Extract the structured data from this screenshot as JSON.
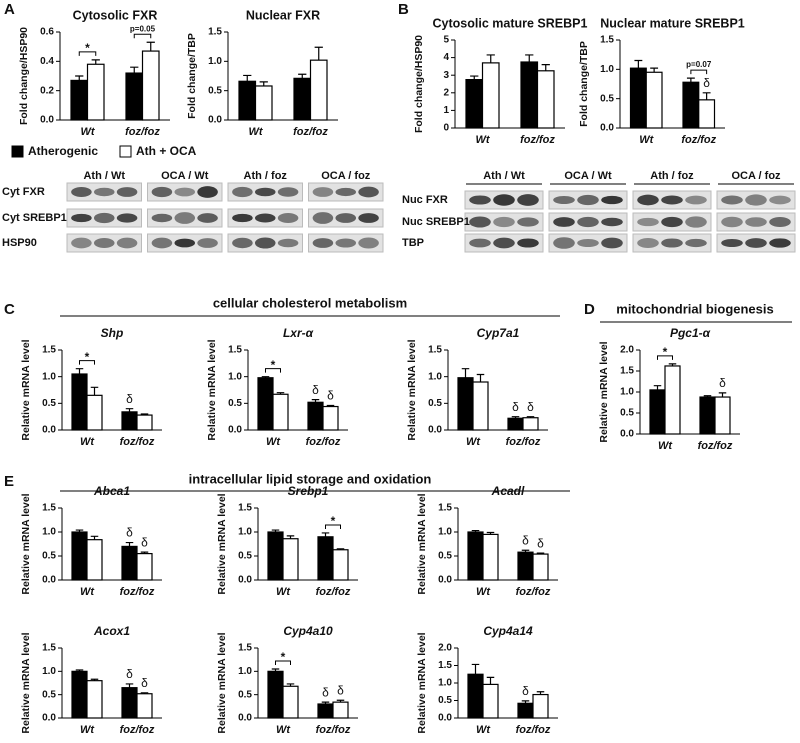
{
  "panels": [
    "A",
    "B",
    "C",
    "D",
    "E"
  ],
  "sections": [
    "cellular cholesterol metabolism",
    "mitochondrial biogenesis",
    "intracellular lipid storage and oxidation"
  ],
  "legend": [
    {
      "name": "Atherogenic",
      "color": "#000000"
    },
    {
      "name": "Ath + OCA",
      "color": "#ffffff"
    }
  ],
  "blots": [
    {
      "columns": [
        "Ath / Wt",
        "OCA / Wt",
        "Ath / foz",
        "OCA / foz"
      ],
      "rows": [
        "Cyt FXR",
        "Cyt SREBP1",
        "HSP90"
      ]
    },
    {
      "columns": [
        "Ath / Wt",
        "OCA / Wt",
        "Ath / foz",
        "OCA / foz"
      ],
      "rows": [
        "Nuc FXR",
        "Nuc SREBP1",
        "TBP"
      ]
    }
  ],
  "chart_data": [
    {
      "type": "bar",
      "title": "Cytosolic FXR",
      "ylabel": "Fold change/HSP90",
      "categories": [
        "Wt",
        "foz/foz"
      ],
      "series": [
        {
          "color": "#000000",
          "values": [
            0.27,
            0.32
          ],
          "errors": [
            0.03,
            0.04
          ]
        },
        {
          "color": "#ffffff",
          "values": [
            0.38,
            0.47
          ],
          "errors": [
            0.03,
            0.06
          ]
        }
      ],
      "ylim": [
        0,
        0.6
      ],
      "yticks": [
        {
          "value": 0,
          "label": "0.0"
        },
        0.2,
        0.4,
        0.6
      ],
      "annotations": [
        {
          "text": "*",
          "category": 0
        },
        {
          "text": "p=0.05",
          "category": 1
        }
      ]
    },
    {
      "type": "bar",
      "title": "Nuclear FXR",
      "ylabel": "Fold change/TBP",
      "categories": [
        "Wt",
        "foz/foz"
      ],
      "series": [
        {
          "color": "#000000",
          "values": [
            0.66,
            0.71
          ],
          "errors": [
            0.1,
            0.07
          ]
        },
        {
          "color": "#ffffff",
          "values": [
            0.58,
            1.02
          ],
          "errors": [
            0.07,
            0.22
          ]
        }
      ],
      "ylim": [
        0,
        1.5
      ],
      "yticks": [
        {
          "value": 0,
          "label": "0.0"
        },
        0.5,
        {
          "value": 1,
          "label": "1.0"
        },
        1.5
      ],
      "annotations": []
    },
    {
      "type": "bar",
      "title": "Cytosolic mature SREBP1",
      "ylabel": "Fold change/HSP90",
      "categories": [
        "Wt",
        "foz/foz"
      ],
      "series": [
        {
          "color": "#000000",
          "values": [
            2.75,
            3.75
          ],
          "errors": [
            0.2,
            0.4
          ]
        },
        {
          "color": "#ffffff",
          "values": [
            3.7,
            3.25
          ],
          "errors": [
            0.45,
            0.35
          ]
        }
      ],
      "ylim": [
        0,
        5
      ],
      "yticks": [
        0,
        1,
        2,
        3,
        4,
        5
      ],
      "annotations": []
    },
    {
      "type": "bar",
      "title": "Nuclear mature SREBP1",
      "ylabel": "Fold change/TBP",
      "categories": [
        "Wt",
        "foz/foz"
      ],
      "series": [
        {
          "color": "#000000",
          "values": [
            1.02,
            0.78
          ],
          "errors": [
            0.13,
            0.07
          ]
        },
        {
          "color": "#ffffff",
          "values": [
            0.95,
            0.48
          ],
          "errors": [
            0.07,
            0.12
          ]
        }
      ],
      "ylim": [
        0,
        1.5
      ],
      "yticks": [
        {
          "value": 0,
          "label": "0.0"
        },
        0.5,
        {
          "value": 1,
          "label": "1.0"
        },
        1.5
      ],
      "annotations": [
        {
          "text": "p=0.07",
          "category": 1
        },
        {
          "text": "δ",
          "category": 1,
          "series": 1
        }
      ]
    },
    {
      "type": "bar",
      "title": "Shp",
      "ylabel": "Relative mRNA level",
      "categories": [
        "Wt",
        "foz/foz"
      ],
      "series": [
        {
          "color": "#000000",
          "values": [
            1.05,
            0.34
          ],
          "errors": [
            0.1,
            0.06
          ]
        },
        {
          "color": "#ffffff",
          "values": [
            0.65,
            0.28
          ],
          "errors": [
            0.15,
            0.02
          ]
        }
      ],
      "ylim": [
        0,
        1.5
      ],
      "yticks": [
        {
          "value": 0,
          "label": "0.0"
        },
        0.5,
        {
          "value": 1,
          "label": "1.0"
        },
        1.5
      ],
      "annotations": [
        {
          "text": "*",
          "category": 0
        },
        {
          "text": "δ",
          "category": 1,
          "series": 0
        }
      ]
    },
    {
      "type": "bar",
      "title": "Lxr-α",
      "ylabel": "Relative mRNA level",
      "categories": [
        "Wt",
        "foz/foz"
      ],
      "series": [
        {
          "color": "#000000",
          "values": [
            0.98,
            0.52
          ],
          "errors": [
            0.02,
            0.05
          ]
        },
        {
          "color": "#ffffff",
          "values": [
            0.67,
            0.44
          ],
          "errors": [
            0.03,
            0.02
          ]
        }
      ],
      "ylim": [
        0,
        1.5
      ],
      "yticks": [
        {
          "value": 0,
          "label": "0.0"
        },
        0.5,
        {
          "value": 1,
          "label": "1.0"
        },
        1.5
      ],
      "annotations": [
        {
          "text": "*",
          "category": 0
        },
        {
          "text": "δ",
          "category": 1,
          "series": 0
        },
        {
          "text": "δ",
          "category": 1,
          "series": 1
        }
      ]
    },
    {
      "type": "bar",
      "title": "Cyp7a1",
      "ylabel": "Relative mRNA level",
      "categories": [
        "Wt",
        "foz/foz"
      ],
      "series": [
        {
          "color": "#000000",
          "values": [
            0.98,
            0.22
          ],
          "errors": [
            0.17,
            0.03
          ]
        },
        {
          "color": "#ffffff",
          "values": [
            0.9,
            0.23
          ],
          "errors": [
            0.14,
            0.02
          ]
        }
      ],
      "ylim": [
        0,
        1.5
      ],
      "yticks": [
        {
          "value": 0,
          "label": "0.0"
        },
        0.5,
        {
          "value": 1,
          "label": "1.0"
        },
        1.5
      ],
      "annotations": [
        {
          "text": "δ",
          "category": 1,
          "series": 0
        },
        {
          "text": "δ",
          "category": 1,
          "series": 1
        }
      ]
    },
    {
      "type": "bar",
      "title": "Pgc1-α",
      "ylabel": "Relative mRNA level",
      "categories": [
        "Wt",
        "foz/foz"
      ],
      "series": [
        {
          "color": "#000000",
          "values": [
            1.05,
            0.88
          ],
          "errors": [
            0.1,
            0.03
          ]
        },
        {
          "color": "#ffffff",
          "values": [
            1.62,
            0.88
          ],
          "errors": [
            0.05,
            0.1
          ]
        }
      ],
      "ylim": [
        0,
        2
      ],
      "yticks": [
        {
          "value": 0,
          "label": "0.0"
        },
        0.5,
        {
          "value": 1,
          "label": "1.0"
        },
        1.5,
        {
          "value": 2,
          "label": "2.0"
        }
      ],
      "annotations": [
        {
          "text": "*",
          "category": 0
        },
        {
          "text": "δ",
          "category": 1,
          "series": 1
        }
      ]
    },
    {
      "type": "bar",
      "title": "Abca1",
      "ylabel": "Relative mRNA level",
      "categories": [
        "Wt",
        "foz/foz"
      ],
      "series": [
        {
          "color": "#000000",
          "values": [
            1.0,
            0.7
          ],
          "errors": [
            0.04,
            0.08
          ]
        },
        {
          "color": "#ffffff",
          "values": [
            0.84,
            0.55
          ],
          "errors": [
            0.07,
            0.03
          ]
        }
      ],
      "ylim": [
        0,
        1.5
      ],
      "yticks": [
        {
          "value": 0,
          "label": "0.0"
        },
        0.5,
        {
          "value": 1,
          "label": "1.0"
        },
        1.5
      ],
      "annotations": [
        {
          "text": "δ",
          "category": 1,
          "series": 0
        },
        {
          "text": "δ",
          "category": 1,
          "series": 1
        }
      ]
    },
    {
      "type": "bar",
      "title": "Srebp1",
      "ylabel": "Relative mRNA level",
      "categories": [
        "Wt",
        "foz/foz"
      ],
      "series": [
        {
          "color": "#000000",
          "values": [
            1.0,
            0.9
          ],
          "errors": [
            0.04,
            0.08
          ]
        },
        {
          "color": "#ffffff",
          "values": [
            0.86,
            0.63
          ],
          "errors": [
            0.06,
            0.02
          ]
        }
      ],
      "ylim": [
        0,
        1.5
      ],
      "yticks": [
        {
          "value": 0,
          "label": "0.0"
        },
        0.5,
        {
          "value": 1,
          "label": "1.0"
        },
        1.5
      ],
      "annotations": [
        {
          "text": "*",
          "category": 1
        }
      ]
    },
    {
      "type": "bar",
      "title": "Acadl",
      "ylabel": "Relative mRNA level",
      "categories": [
        "Wt",
        "foz/foz"
      ],
      "series": [
        {
          "color": "#000000",
          "values": [
            1.0,
            0.58
          ],
          "errors": [
            0.03,
            0.04
          ]
        },
        {
          "color": "#ffffff",
          "values": [
            0.95,
            0.54
          ],
          "errors": [
            0.04,
            0.02
          ]
        }
      ],
      "ylim": [
        0,
        1.5
      ],
      "yticks": [
        {
          "value": 0,
          "label": "0.0"
        },
        0.5,
        {
          "value": 1,
          "label": "1.0"
        },
        1.5
      ],
      "annotations": [
        {
          "text": "δ",
          "category": 1,
          "series": 0
        },
        {
          "text": "δ",
          "category": 1,
          "series": 1
        }
      ]
    },
    {
      "type": "bar",
      "title": "Acox1",
      "ylabel": "Relative mRNA level",
      "categories": [
        "Wt",
        "foz/foz"
      ],
      "series": [
        {
          "color": "#000000",
          "values": [
            1.0,
            0.65
          ],
          "errors": [
            0.03,
            0.08
          ]
        },
        {
          "color": "#ffffff",
          "values": [
            0.8,
            0.52
          ],
          "errors": [
            0.03,
            0.02
          ]
        }
      ],
      "ylim": [
        0,
        1.5
      ],
      "yticks": [
        {
          "value": 0,
          "label": "0.0"
        },
        0.5,
        {
          "value": 1,
          "label": "1.0"
        },
        1.5
      ],
      "annotations": [
        {
          "text": "δ",
          "category": 1,
          "series": 0
        },
        {
          "text": "δ",
          "category": 1,
          "series": 1
        }
      ]
    },
    {
      "type": "bar",
      "title": "Cyp4a10",
      "ylabel": "Relative mRNA level",
      "categories": [
        "Wt",
        "foz/foz"
      ],
      "series": [
        {
          "color": "#000000",
          "values": [
            1.0,
            0.3
          ],
          "errors": [
            0.05,
            0.04
          ]
        },
        {
          "color": "#ffffff",
          "values": [
            0.68,
            0.34
          ],
          "errors": [
            0.05,
            0.04
          ]
        }
      ],
      "ylim": [
        0,
        1.5
      ],
      "yticks": [
        {
          "value": 0,
          "label": "0.0"
        },
        0.5,
        {
          "value": 1,
          "label": "1.0"
        },
        1.5
      ],
      "annotations": [
        {
          "text": "*",
          "category": 0
        },
        {
          "text": "δ",
          "category": 1,
          "series": 0
        },
        {
          "text": "δ",
          "category": 1,
          "series": 1
        }
      ]
    },
    {
      "type": "bar",
      "title": "Cyp4a14",
      "ylabel": "Relative mRNA level",
      "categories": [
        "Wt",
        "foz/foz"
      ],
      "series": [
        {
          "color": "#000000",
          "values": [
            1.25,
            0.42
          ],
          "errors": [
            0.28,
            0.07
          ]
        },
        {
          "color": "#ffffff",
          "values": [
            0.96,
            0.67
          ],
          "errors": [
            0.2,
            0.08
          ]
        }
      ],
      "ylim": [
        0,
        2
      ],
      "yticks": [
        {
          "value": 0,
          "label": "0.0"
        },
        0.5,
        {
          "value": 1,
          "label": "1.0"
        },
        1.5,
        {
          "value": 2,
          "label": "2.0"
        }
      ],
      "annotations": [
        {
          "text": "δ",
          "category": 1,
          "series": 0
        }
      ]
    }
  ]
}
